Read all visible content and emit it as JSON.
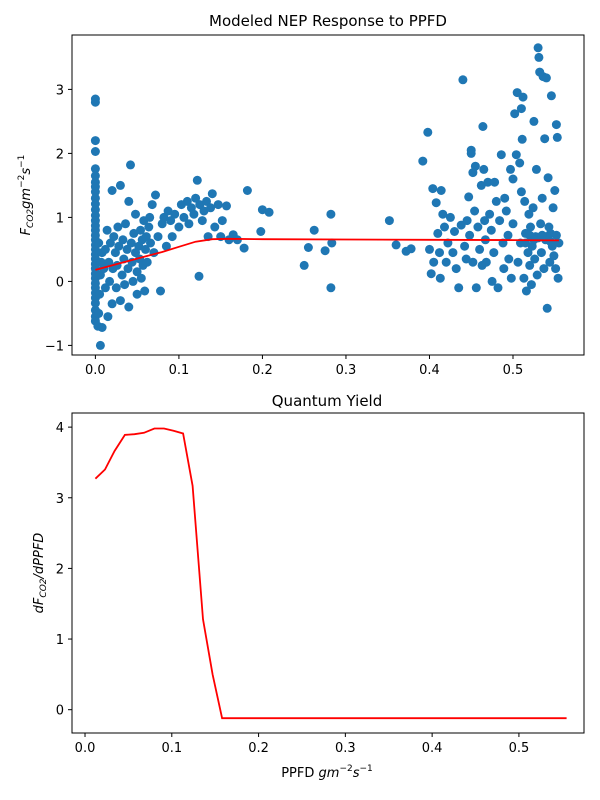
{
  "chart_data": [
    {
      "type": "scatter",
      "title": "Modeled NEP Response to PPFD",
      "xlabel": "",
      "ylabel": "F_CO2 gm^-2 s^-1",
      "xlim": [
        -0.028,
        0.585
      ],
      "ylim": [
        -1.15,
        3.85
      ],
      "xticks": [
        0.0,
        0.1,
        0.2,
        0.3,
        0.4,
        0.5
      ],
      "xtick_labels": [
        "0.0",
        "0.1",
        "0.2",
        "0.3",
        "0.4",
        "0.5"
      ],
      "yticks": [
        -1,
        0,
        1,
        2,
        3
      ],
      "ytick_labels": [
        "−1",
        "0",
        "1",
        "2",
        "3"
      ],
      "grid": false,
      "colors": {
        "points": "#1f77b4",
        "fit": "#ff0000"
      },
      "scatter_points": [
        [
          0.0,
          2.85
        ],
        [
          0.0,
          2.8
        ],
        [
          0.0,
          2.2
        ],
        [
          0.0,
          2.03
        ],
        [
          0.0,
          1.76
        ],
        [
          0.0,
          1.65
        ],
        [
          0.0,
          1.55
        ],
        [
          0.0,
          1.48
        ],
        [
          0.0,
          1.4
        ],
        [
          0.0,
          1.3
        ],
        [
          0.0,
          1.21
        ],
        [
          0.0,
          1.12
        ],
        [
          0.0,
          1.03
        ],
        [
          0.0,
          0.95
        ],
        [
          0.0,
          0.87
        ],
        [
          0.0,
          0.8
        ],
        [
          0.0,
          0.72
        ],
        [
          0.0,
          0.65
        ],
        [
          0.0,
          0.57
        ],
        [
          0.0,
          0.5
        ],
        [
          0.0,
          0.42
        ],
        [
          0.0,
          0.35
        ],
        [
          0.0,
          0.27
        ],
        [
          0.0,
          0.2
        ],
        [
          0.0,
          0.12
        ],
        [
          0.0,
          0.05
        ],
        [
          0.0,
          -0.03
        ],
        [
          0.0,
          -0.1
        ],
        [
          0.0,
          -0.18
        ],
        [
          0.0,
          -0.26
        ],
        [
          0.0,
          -0.34
        ],
        [
          0.0,
          -0.45
        ],
        [
          0.0,
          -0.55
        ],
        [
          0.0,
          -0.62
        ],
        [
          0.003,
          -0.7
        ],
        [
          0.008,
          -0.72
        ],
        [
          0.006,
          -1.0
        ],
        [
          0.004,
          -0.5
        ],
        [
          0.005,
          -0.2
        ],
        [
          0.006,
          0.1
        ],
        [
          0.007,
          0.3
        ],
        [
          0.004,
          0.6
        ],
        [
          0.008,
          0.45
        ],
        [
          0.01,
          0.2
        ],
        [
          0.012,
          -0.1
        ],
        [
          0.012,
          0.5
        ],
        [
          0.015,
          -0.55
        ],
        [
          0.014,
          0.8
        ],
        [
          0.016,
          0.3
        ],
        [
          0.017,
          0.0
        ],
        [
          0.018,
          0.6
        ],
        [
          0.02,
          -0.35
        ],
        [
          0.02,
          1.42
        ],
        [
          0.021,
          0.2
        ],
        [
          0.022,
          0.7
        ],
        [
          0.024,
          0.45
        ],
        [
          0.025,
          -0.1
        ],
        [
          0.026,
          0.25
        ],
        [
          0.027,
          0.85
        ],
        [
          0.028,
          0.55
        ],
        [
          0.03,
          1.5
        ],
        [
          0.03,
          -0.3
        ],
        [
          0.032,
          0.1
        ],
        [
          0.033,
          0.65
        ],
        [
          0.034,
          0.35
        ],
        [
          0.035,
          -0.05
        ],
        [
          0.036,
          0.9
        ],
        [
          0.038,
          0.5
        ],
        [
          0.039,
          0.2
        ],
        [
          0.04,
          1.25
        ],
        [
          0.04,
          -0.4
        ],
        [
          0.042,
          1.82
        ],
        [
          0.043,
          0.6
        ],
        [
          0.044,
          0.3
        ],
        [
          0.045,
          0.0
        ],
        [
          0.046,
          0.75
        ],
        [
          0.048,
          0.45
        ],
        [
          0.048,
          1.05
        ],
        [
          0.05,
          0.15
        ],
        [
          0.05,
          -0.2
        ],
        [
          0.052,
          0.55
        ],
        [
          0.053,
          0.35
        ],
        [
          0.054,
          0.8
        ],
        [
          0.055,
          0.05
        ],
        [
          0.056,
          0.65
        ],
        [
          0.057,
          0.25
        ],
        [
          0.058,
          0.95
        ],
        [
          0.059,
          -0.15
        ],
        [
          0.06,
          0.5
        ],
        [
          0.061,
          0.7
        ],
        [
          0.062,
          0.3
        ],
        [
          0.064,
          0.85
        ],
        [
          0.065,
          1.0
        ],
        [
          0.066,
          0.6
        ],
        [
          0.068,
          1.2
        ],
        [
          0.07,
          0.45
        ],
        [
          0.072,
          1.35
        ],
        [
          0.075,
          0.7
        ],
        [
          0.078,
          -0.15
        ],
        [
          0.08,
          0.9
        ],
        [
          0.082,
          1.0
        ],
        [
          0.085,
          0.55
        ],
        [
          0.087,
          1.1
        ],
        [
          0.09,
          0.95
        ],
        [
          0.092,
          0.7
        ],
        [
          0.095,
          1.05
        ],
        [
          0.1,
          0.85
        ],
        [
          0.103,
          1.2
        ],
        [
          0.106,
          1.0
        ],
        [
          0.11,
          1.25
        ],
        [
          0.112,
          0.9
        ],
        [
          0.115,
          1.15
        ],
        [
          0.118,
          1.05
        ],
        [
          0.12,
          1.3
        ],
        [
          0.122,
          1.58
        ],
        [
          0.124,
          0.08
        ],
        [
          0.125,
          1.2
        ],
        [
          0.128,
          0.95
        ],
        [
          0.13,
          1.1
        ],
        [
          0.133,
          1.25
        ],
        [
          0.135,
          0.7
        ],
        [
          0.138,
          1.15
        ],
        [
          0.14,
          1.37
        ],
        [
          0.143,
          0.85
        ],
        [
          0.147,
          1.2
        ],
        [
          0.15,
          0.7
        ],
        [
          0.152,
          0.95
        ],
        [
          0.157,
          1.18
        ],
        [
          0.16,
          0.65
        ],
        [
          0.165,
          0.73
        ],
        [
          0.17,
          0.65
        ],
        [
          0.178,
          0.52
        ],
        [
          0.182,
          1.42
        ],
        [
          0.198,
          0.78
        ],
        [
          0.2,
          1.12
        ],
        [
          0.208,
          1.08
        ],
        [
          0.25,
          0.25
        ],
        [
          0.255,
          0.53
        ],
        [
          0.262,
          0.8
        ],
        [
          0.275,
          0.48
        ],
        [
          0.282,
          -0.1
        ],
        [
          0.282,
          1.05
        ],
        [
          0.283,
          0.6
        ],
        [
          0.352,
          0.95
        ],
        [
          0.36,
          0.57
        ],
        [
          0.372,
          0.47
        ],
        [
          0.378,
          0.51
        ],
        [
          0.392,
          1.88
        ],
        [
          0.398,
          2.33
        ],
        [
          0.4,
          0.5
        ],
        [
          0.402,
          0.12
        ],
        [
          0.404,
          1.45
        ],
        [
          0.405,
          0.3
        ],
        [
          0.408,
          1.23
        ],
        [
          0.41,
          0.75
        ],
        [
          0.412,
          0.45
        ],
        [
          0.413,
          0.05
        ],
        [
          0.414,
          1.42
        ],
        [
          0.416,
          1.05
        ],
        [
          0.418,
          0.85
        ],
        [
          0.42,
          0.3
        ],
        [
          0.422,
          0.6
        ],
        [
          0.425,
          1.0
        ],
        [
          0.428,
          0.45
        ],
        [
          0.43,
          0.78
        ],
        [
          0.432,
          0.2
        ],
        [
          0.435,
          -0.1
        ],
        [
          0.438,
          0.88
        ],
        [
          0.44,
          3.15
        ],
        [
          0.442,
          0.55
        ],
        [
          0.444,
          0.35
        ],
        [
          0.445,
          0.95
        ],
        [
          0.447,
          1.32
        ],
        [
          0.448,
          0.72
        ],
        [
          0.45,
          2.05
        ],
        [
          0.45,
          2.0
        ],
        [
          0.452,
          1.7
        ],
        [
          0.452,
          0.3
        ],
        [
          0.454,
          1.1
        ],
        [
          0.455,
          1.8
        ],
        [
          0.456,
          -0.1
        ],
        [
          0.458,
          0.85
        ],
        [
          0.46,
          0.5
        ],
        [
          0.462,
          1.5
        ],
        [
          0.463,
          0.25
        ],
        [
          0.464,
          2.42
        ],
        [
          0.465,
          1.75
        ],
        [
          0.466,
          0.95
        ],
        [
          0.467,
          0.65
        ],
        [
          0.468,
          0.3
        ],
        [
          0.47,
          1.55
        ],
        [
          0.472,
          1.05
        ],
        [
          0.474,
          0.8
        ],
        [
          0.475,
          0.0
        ],
        [
          0.477,
          0.45
        ],
        [
          0.478,
          1.55
        ],
        [
          0.48,
          1.25
        ],
        [
          0.482,
          -0.1
        ],
        [
          0.484,
          0.95
        ],
        [
          0.486,
          1.98
        ],
        [
          0.488,
          0.6
        ],
        [
          0.489,
          0.2
        ],
        [
          0.49,
          1.3
        ],
        [
          0.492,
          1.1
        ],
        [
          0.494,
          0.72
        ],
        [
          0.495,
          0.35
        ],
        [
          0.497,
          1.75
        ],
        [
          0.498,
          0.05
        ],
        [
          0.5,
          0.9
        ],
        [
          0.5,
          1.6
        ],
        [
          0.502,
          2.62
        ],
        [
          0.504,
          1.98
        ],
        [
          0.505,
          2.95
        ],
        [
          0.506,
          0.3
        ],
        [
          0.508,
          1.85
        ],
        [
          0.509,
          0.6
        ],
        [
          0.51,
          1.4
        ],
        [
          0.51,
          2.7
        ],
        [
          0.511,
          2.22
        ],
        [
          0.512,
          2.88
        ],
        [
          0.513,
          0.05
        ],
        [
          0.514,
          1.25
        ],
        [
          0.515,
          0.75
        ],
        [
          0.516,
          -0.15
        ],
        [
          0.518,
          0.45
        ],
        [
          0.519,
          1.05
        ],
        [
          0.52,
          0.25
        ],
        [
          0.521,
          0.85
        ],
        [
          0.522,
          -0.05
        ],
        [
          0.523,
          0.55
        ],
        [
          0.524,
          1.15
        ],
        [
          0.525,
          2.5
        ],
        [
          0.526,
          0.35
        ],
        [
          0.527,
          0.7
        ],
        [
          0.528,
          1.75
        ],
        [
          0.529,
          0.1
        ],
        [
          0.53,
          3.65
        ],
        [
          0.531,
          3.5
        ],
        [
          0.532,
          3.27
        ],
        [
          0.533,
          0.9
        ],
        [
          0.534,
          0.45
        ],
        [
          0.535,
          1.3
        ],
        [
          0.536,
          3.2
        ],
        [
          0.537,
          0.2
        ],
        [
          0.538,
          2.23
        ],
        [
          0.539,
          0.65
        ],
        [
          0.54,
          3.18
        ],
        [
          0.541,
          -0.42
        ],
        [
          0.542,
          1.62
        ],
        [
          0.543,
          0.85
        ],
        [
          0.544,
          0.3
        ],
        [
          0.545,
          0.75
        ],
        [
          0.546,
          2.9
        ],
        [
          0.547,
          0.55
        ],
        [
          0.548,
          1.15
        ],
        [
          0.549,
          0.4
        ],
        [
          0.55,
          1.42
        ],
        [
          0.551,
          0.2
        ],
        [
          0.552,
          2.45
        ],
        [
          0.552,
          0.72
        ],
        [
          0.553,
          2.25
        ],
        [
          0.554,
          0.05
        ],
        [
          0.555,
          0.6
        ],
        [
          0.54,
          0.7
        ],
        [
          0.545,
          0.62
        ],
        [
          0.53,
          0.68
        ],
        [
          0.535,
          0.72
        ],
        [
          0.52,
          0.72
        ],
        [
          0.515,
          0.6
        ],
        [
          0.525,
          0.65
        ]
      ],
      "fit_line": {
        "x": [
          0.0,
          0.02,
          0.04,
          0.06,
          0.08,
          0.1,
          0.12,
          0.14,
          0.16,
          0.2,
          0.3,
          0.4,
          0.5,
          0.555
        ],
        "y": [
          0.18,
          0.25,
          0.32,
          0.39,
          0.46,
          0.54,
          0.62,
          0.66,
          0.665,
          0.66,
          0.655,
          0.65,
          0.645,
          0.64
        ]
      }
    },
    {
      "type": "line",
      "title": "Quantum Yield",
      "xlabel": "PPFD gm^-2 s^-1",
      "ylabel": "dF_CO2 / dPPFD",
      "xlim": [
        -0.015,
        0.575
      ],
      "ylim": [
        -0.33,
        4.2
      ],
      "xticks": [
        0.0,
        0.1,
        0.2,
        0.3,
        0.4,
        0.5
      ],
      "xtick_labels": [
        "0.0",
        "0.1",
        "0.2",
        "0.3",
        "0.4",
        "0.5"
      ],
      "yticks": [
        0,
        1,
        2,
        3,
        4
      ],
      "ytick_labels": [
        "0",
        "1",
        "2",
        "3",
        "4"
      ],
      "grid": false,
      "colors": {
        "line": "#ff0000"
      },
      "series": [
        {
          "x": [
            0.012,
            0.023,
            0.034,
            0.046,
            0.057,
            0.068,
            0.08,
            0.091,
            0.102,
            0.113,
            0.124,
            0.136,
            0.147,
            0.158,
            0.555
          ],
          "y": [
            3.27,
            3.4,
            3.66,
            3.89,
            3.9,
            3.92,
            3.98,
            3.98,
            3.95,
            3.91,
            3.17,
            1.28,
            0.5,
            -0.12,
            -0.12
          ]
        }
      ]
    }
  ]
}
